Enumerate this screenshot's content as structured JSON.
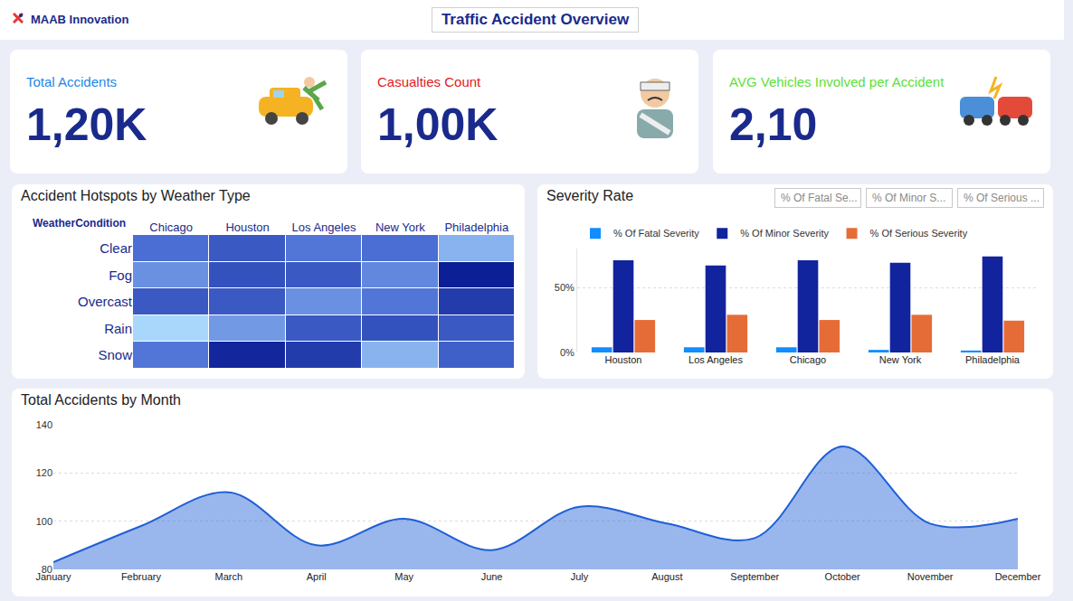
{
  "header": {
    "brand": "MAAB Innovation",
    "title": "Traffic Accident Overview"
  },
  "kpis": [
    {
      "label": "Total Accidents",
      "value": "1,20K",
      "color": "#1e88e5"
    },
    {
      "label": "Casualties Count",
      "value": "1,00K",
      "color": "#e02020"
    },
    {
      "label": "AVG Vehicles Involved per Accident",
      "value": "2,10",
      "color": "#5ee03a"
    }
  ],
  "slicers": [
    "% Of Fatal Se...",
    "% Of Minor S...",
    "% Of Serious ..."
  ],
  "chart_data": [
    {
      "type": "heatmap",
      "title": "Accident Hotspots by Weather Type",
      "ylabel": "WeatherCondition",
      "categories": [
        "Chicago",
        "Houston",
        "Los Angeles",
        "New York",
        "Philadelphia"
      ],
      "rows": [
        "Clear",
        "Fog",
        "Overcast",
        "Rain",
        "Snow"
      ],
      "cells": [
        [
          51,
          54,
          50,
          51,
          43
        ],
        [
          47,
          55,
          54,
          48,
          62
        ],
        [
          54,
          54,
          47,
          50,
          58
        ],
        [
          39,
          46,
          54,
          55,
          54
        ],
        [
          50,
          61,
          58,
          43,
          53
        ]
      ]
    },
    {
      "type": "bar",
      "title": "Severity Rate",
      "categories": [
        "Houston",
        "Los Angeles",
        "Chicago",
        "New York",
        "Philadelphia"
      ],
      "series": [
        {
          "name": "% Of Fatal Severity",
          "color": "#118dff",
          "values": [
            4,
            4,
            4,
            2,
            1.5
          ]
        },
        {
          "name": "% Of Minor Severity",
          "color": "#12239e",
          "values": [
            71,
            67,
            71,
            69,
            74
          ]
        },
        {
          "name": "% Of Serious Severity",
          "color": "#e66c37",
          "values": [
            25,
            29,
            25,
            29,
            24.5
          ]
        }
      ],
      "ylim": [
        0,
        80
      ],
      "yticks": [
        {
          "value": 0,
          "label": "0%"
        },
        {
          "value": 50,
          "label": "50%"
        }
      ],
      "grid": true,
      "legend": "top left"
    },
    {
      "type": "line",
      "title": "Total Accidents by Month",
      "categories": [
        "January",
        "February",
        "March",
        "April",
        "May",
        "June",
        "July",
        "August",
        "September",
        "October",
        "November",
        "December"
      ],
      "values": [
        83,
        98,
        112,
        90,
        101,
        88,
        106,
        99,
        93,
        131,
        99,
        101
      ],
      "color": "#1f5fd6",
      "line_style": "smooth",
      "ylim": [
        80,
        140
      ],
      "yticks": [
        80,
        100,
        120,
        140
      ],
      "grid": true
    }
  ]
}
